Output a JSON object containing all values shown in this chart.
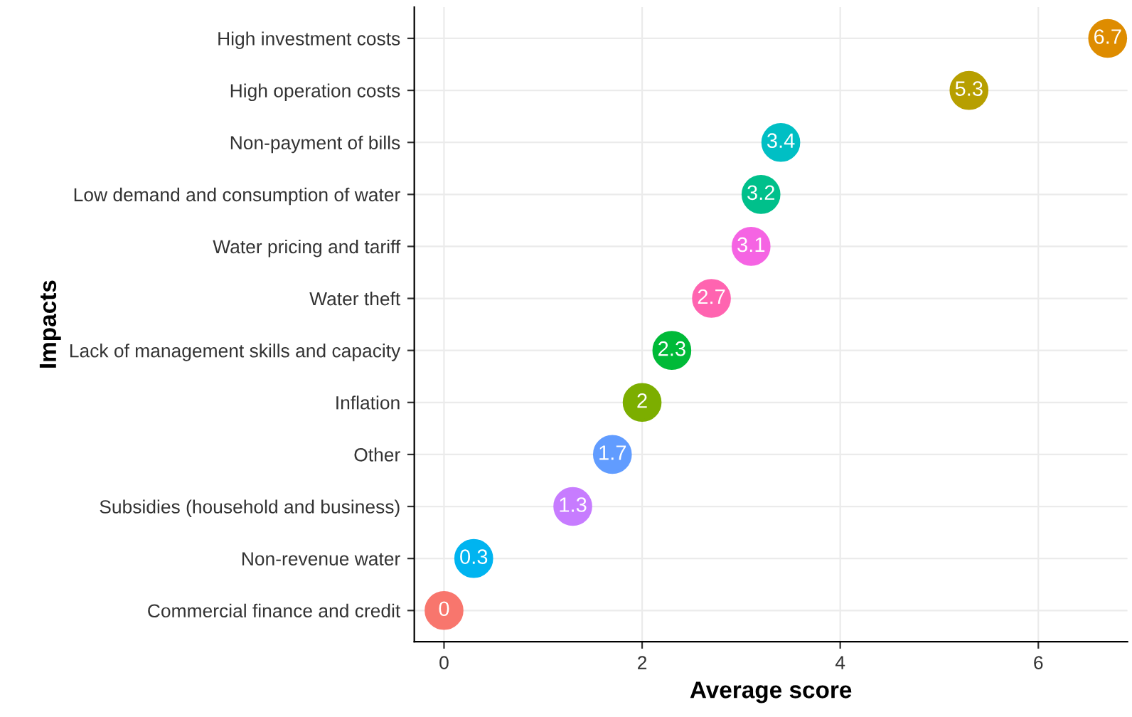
{
  "chart_data": {
    "type": "scatter",
    "orientation": "horizontal",
    "xlabel": "Average score",
    "ylabel": "Impacts",
    "categories": [
      "High investment costs",
      "High operation costs",
      "Non-payment of bills",
      "Low demand and consumption of water",
      "Water pricing and tariff",
      "Water theft",
      "Lack of management skills and capacity",
      "Inflation",
      "Other",
      "Subsidies (household and business)",
      "Non-revenue water",
      "Commercial finance and credit"
    ],
    "values": [
      6.7,
      5.3,
      3.4,
      3.2,
      3.1,
      2.7,
      2.3,
      2,
      1.7,
      1.3,
      0.3,
      0
    ],
    "colors": [
      "#de8c00",
      "#b79f00",
      "#00bfc4",
      "#00c08b",
      "#f564e3",
      "#ff64b0",
      "#00ba38",
      "#7cae00",
      "#619cff",
      "#c77cff",
      "#00b4f0",
      "#f8766d"
    ],
    "xlim": [
      -0.3,
      6.9
    ],
    "xticks": [
      0,
      2,
      4,
      6
    ],
    "grid": true,
    "marker": "circle",
    "data_labels": true,
    "legend": false
  }
}
